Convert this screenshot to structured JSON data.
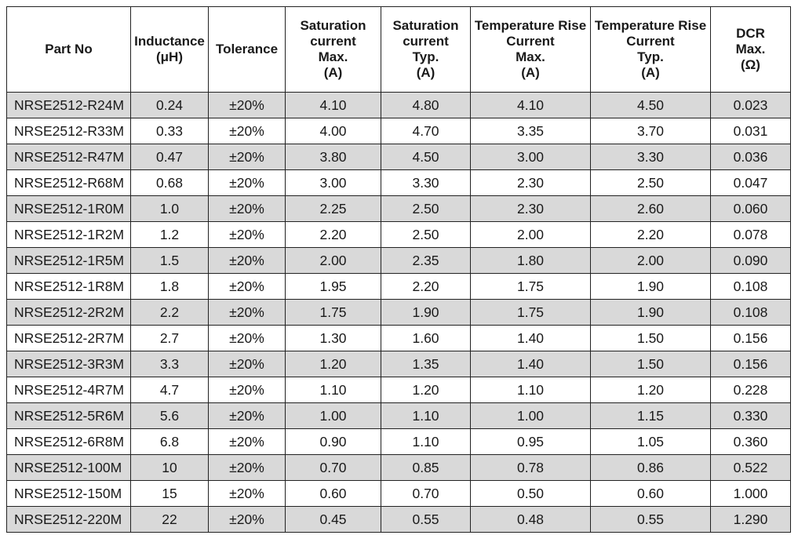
{
  "table": {
    "headers": [
      [
        "Part No"
      ],
      [
        "Inductance",
        "(μH)"
      ],
      [
        "Tolerance"
      ],
      [
        "Saturation",
        "current",
        "Max.",
        "(A)"
      ],
      [
        "Saturation",
        "current",
        "Typ.",
        "(A)"
      ],
      [
        "Temperature Rise",
        "Current",
        "Max.",
        "(A)"
      ],
      [
        "Temperature Rise",
        "Current",
        "Typ.",
        "(A)"
      ],
      [
        "DCR",
        "Max.",
        "(Ω)"
      ]
    ],
    "rows": [
      [
        "NRSE2512-R24M",
        "0.24",
        "±20%",
        "4.10",
        "4.80",
        "4.10",
        "4.50",
        "0.023"
      ],
      [
        "NRSE2512-R33M",
        "0.33",
        "±20%",
        "4.00",
        "4.70",
        "3.35",
        "3.70",
        "0.031"
      ],
      [
        "NRSE2512-R47M",
        "0.47",
        "±20%",
        "3.80",
        "4.50",
        "3.00",
        "3.30",
        "0.036"
      ],
      [
        "NRSE2512-R68M",
        "0.68",
        "±20%",
        "3.00",
        "3.30",
        "2.30",
        "2.50",
        "0.047"
      ],
      [
        "NRSE2512-1R0M",
        "1.0",
        "±20%",
        "2.25",
        "2.50",
        "2.30",
        "2.60",
        "0.060"
      ],
      [
        "NRSE2512-1R2M",
        "1.2",
        "±20%",
        "2.20",
        "2.50",
        "2.00",
        "2.20",
        "0.078"
      ],
      [
        "NRSE2512-1R5M",
        "1.5",
        "±20%",
        "2.00",
        "2.35",
        "1.80",
        "2.00",
        "0.090"
      ],
      [
        "NRSE2512-1R8M",
        "1.8",
        "±20%",
        "1.95",
        "2.20",
        "1.75",
        "1.90",
        "0.108"
      ],
      [
        "NRSE2512-2R2M",
        "2.2",
        "±20%",
        "1.75",
        "1.90",
        "1.75",
        "1.90",
        "0.108"
      ],
      [
        "NRSE2512-2R7M",
        "2.7",
        "±20%",
        "1.30",
        "1.60",
        "1.40",
        "1.50",
        "0.156"
      ],
      [
        "NRSE2512-3R3M",
        "3.3",
        "±20%",
        "1.20",
        "1.35",
        "1.40",
        "1.50",
        "0.156"
      ],
      [
        "NRSE2512-4R7M",
        "4.7",
        "±20%",
        "1.10",
        "1.20",
        "1.10",
        "1.20",
        "0.228"
      ],
      [
        "NRSE2512-5R6M",
        "5.6",
        "±20%",
        "1.00",
        "1.10",
        "1.00",
        "1.15",
        "0.330"
      ],
      [
        "NRSE2512-6R8M",
        "6.8",
        "±20%",
        "0.90",
        "1.10",
        "0.95",
        "1.05",
        "0.360"
      ],
      [
        "NRSE2512-100M",
        "10",
        "±20%",
        "0.70",
        "0.85",
        "0.78",
        "0.86",
        "0.522"
      ],
      [
        "NRSE2512-150M",
        "15",
        "±20%",
        "0.60",
        "0.70",
        "0.50",
        "0.60",
        "1.000"
      ],
      [
        "NRSE2512-220M",
        "22",
        "±20%",
        "0.45",
        "0.55",
        "0.48",
        "0.55",
        "1.290"
      ]
    ],
    "colors": {
      "stripe": "#d9d9d9",
      "plain": "#ffffff",
      "border": "#222222"
    }
  }
}
